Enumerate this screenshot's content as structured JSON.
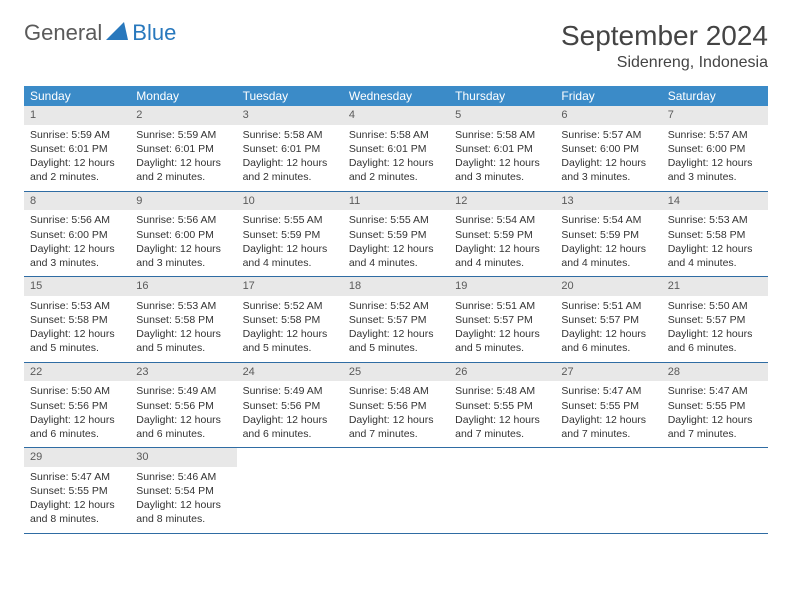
{
  "logo": {
    "general": "General",
    "blue": "Blue"
  },
  "title": "September 2024",
  "location": "Sidenreng, Indonesia",
  "colors": {
    "header_bg": "#3b8bc8",
    "header_text": "#ffffff",
    "daynum_bg": "#e8e8e8",
    "daynum_text": "#5a5a5a",
    "row_border": "#2f6ca3",
    "body_text": "#333333",
    "logo_gray": "#5a5a5a",
    "logo_blue": "#2878bd"
  },
  "weekdays": [
    "Sunday",
    "Monday",
    "Tuesday",
    "Wednesday",
    "Thursday",
    "Friday",
    "Saturday"
  ],
  "weeks": [
    [
      {
        "n": "1",
        "sunrise": "Sunrise: 5:59 AM",
        "sunset": "Sunset: 6:01 PM",
        "daylight": "Daylight: 12 hours and 2 minutes."
      },
      {
        "n": "2",
        "sunrise": "Sunrise: 5:59 AM",
        "sunset": "Sunset: 6:01 PM",
        "daylight": "Daylight: 12 hours and 2 minutes."
      },
      {
        "n": "3",
        "sunrise": "Sunrise: 5:58 AM",
        "sunset": "Sunset: 6:01 PM",
        "daylight": "Daylight: 12 hours and 2 minutes."
      },
      {
        "n": "4",
        "sunrise": "Sunrise: 5:58 AM",
        "sunset": "Sunset: 6:01 PM",
        "daylight": "Daylight: 12 hours and 2 minutes."
      },
      {
        "n": "5",
        "sunrise": "Sunrise: 5:58 AM",
        "sunset": "Sunset: 6:01 PM",
        "daylight": "Daylight: 12 hours and 3 minutes."
      },
      {
        "n": "6",
        "sunrise": "Sunrise: 5:57 AM",
        "sunset": "Sunset: 6:00 PM",
        "daylight": "Daylight: 12 hours and 3 minutes."
      },
      {
        "n": "7",
        "sunrise": "Sunrise: 5:57 AM",
        "sunset": "Sunset: 6:00 PM",
        "daylight": "Daylight: 12 hours and 3 minutes."
      }
    ],
    [
      {
        "n": "8",
        "sunrise": "Sunrise: 5:56 AM",
        "sunset": "Sunset: 6:00 PM",
        "daylight": "Daylight: 12 hours and 3 minutes."
      },
      {
        "n": "9",
        "sunrise": "Sunrise: 5:56 AM",
        "sunset": "Sunset: 6:00 PM",
        "daylight": "Daylight: 12 hours and 3 minutes."
      },
      {
        "n": "10",
        "sunrise": "Sunrise: 5:55 AM",
        "sunset": "Sunset: 5:59 PM",
        "daylight": "Daylight: 12 hours and 4 minutes."
      },
      {
        "n": "11",
        "sunrise": "Sunrise: 5:55 AM",
        "sunset": "Sunset: 5:59 PM",
        "daylight": "Daylight: 12 hours and 4 minutes."
      },
      {
        "n": "12",
        "sunrise": "Sunrise: 5:54 AM",
        "sunset": "Sunset: 5:59 PM",
        "daylight": "Daylight: 12 hours and 4 minutes."
      },
      {
        "n": "13",
        "sunrise": "Sunrise: 5:54 AM",
        "sunset": "Sunset: 5:59 PM",
        "daylight": "Daylight: 12 hours and 4 minutes."
      },
      {
        "n": "14",
        "sunrise": "Sunrise: 5:53 AM",
        "sunset": "Sunset: 5:58 PM",
        "daylight": "Daylight: 12 hours and 4 minutes."
      }
    ],
    [
      {
        "n": "15",
        "sunrise": "Sunrise: 5:53 AM",
        "sunset": "Sunset: 5:58 PM",
        "daylight": "Daylight: 12 hours and 5 minutes."
      },
      {
        "n": "16",
        "sunrise": "Sunrise: 5:53 AM",
        "sunset": "Sunset: 5:58 PM",
        "daylight": "Daylight: 12 hours and 5 minutes."
      },
      {
        "n": "17",
        "sunrise": "Sunrise: 5:52 AM",
        "sunset": "Sunset: 5:58 PM",
        "daylight": "Daylight: 12 hours and 5 minutes."
      },
      {
        "n": "18",
        "sunrise": "Sunrise: 5:52 AM",
        "sunset": "Sunset: 5:57 PM",
        "daylight": "Daylight: 12 hours and 5 minutes."
      },
      {
        "n": "19",
        "sunrise": "Sunrise: 5:51 AM",
        "sunset": "Sunset: 5:57 PM",
        "daylight": "Daylight: 12 hours and 5 minutes."
      },
      {
        "n": "20",
        "sunrise": "Sunrise: 5:51 AM",
        "sunset": "Sunset: 5:57 PM",
        "daylight": "Daylight: 12 hours and 6 minutes."
      },
      {
        "n": "21",
        "sunrise": "Sunrise: 5:50 AM",
        "sunset": "Sunset: 5:57 PM",
        "daylight": "Daylight: 12 hours and 6 minutes."
      }
    ],
    [
      {
        "n": "22",
        "sunrise": "Sunrise: 5:50 AM",
        "sunset": "Sunset: 5:56 PM",
        "daylight": "Daylight: 12 hours and 6 minutes."
      },
      {
        "n": "23",
        "sunrise": "Sunrise: 5:49 AM",
        "sunset": "Sunset: 5:56 PM",
        "daylight": "Daylight: 12 hours and 6 minutes."
      },
      {
        "n": "24",
        "sunrise": "Sunrise: 5:49 AM",
        "sunset": "Sunset: 5:56 PM",
        "daylight": "Daylight: 12 hours and 6 minutes."
      },
      {
        "n": "25",
        "sunrise": "Sunrise: 5:48 AM",
        "sunset": "Sunset: 5:56 PM",
        "daylight": "Daylight: 12 hours and 7 minutes."
      },
      {
        "n": "26",
        "sunrise": "Sunrise: 5:48 AM",
        "sunset": "Sunset: 5:55 PM",
        "daylight": "Daylight: 12 hours and 7 minutes."
      },
      {
        "n": "27",
        "sunrise": "Sunrise: 5:47 AM",
        "sunset": "Sunset: 5:55 PM",
        "daylight": "Daylight: 12 hours and 7 minutes."
      },
      {
        "n": "28",
        "sunrise": "Sunrise: 5:47 AM",
        "sunset": "Sunset: 5:55 PM",
        "daylight": "Daylight: 12 hours and 7 minutes."
      }
    ],
    [
      {
        "n": "29",
        "sunrise": "Sunrise: 5:47 AM",
        "sunset": "Sunset: 5:55 PM",
        "daylight": "Daylight: 12 hours and 8 minutes."
      },
      {
        "n": "30",
        "sunrise": "Sunrise: 5:46 AM",
        "sunset": "Sunset: 5:54 PM",
        "daylight": "Daylight: 12 hours and 8 minutes."
      },
      null,
      null,
      null,
      null,
      null
    ]
  ]
}
